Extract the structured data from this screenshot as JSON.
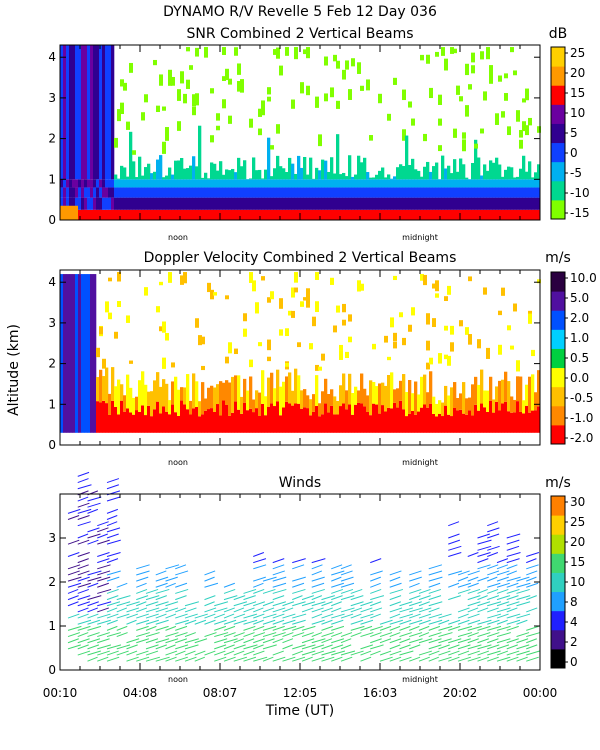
{
  "header": {
    "line1": "DYNAMO R/V Revelle    5 Feb 12 Day 036"
  },
  "colors": {
    "snr": [
      "#80ff00",
      "#00d890",
      "#00b0f0",
      "#1040ff",
      "#300090",
      "#6a00a0",
      "#ff0000",
      "#ff9900",
      "#ffd000"
    ],
    "velocity": [
      "#ff0000",
      "#ff8800",
      "#ffc000",
      "#ffff00",
      "#00d040",
      "#00d0ff",
      "#0050ff",
      "#5010a0",
      "#2a0040"
    ],
    "winds": [
      "#000000",
      "#40108a",
      "#2020ff",
      "#20a0ff",
      "#30d0c0",
      "#40d870",
      "#b0e000",
      "#ffd000",
      "#ff8000",
      "#ff0000"
    ]
  },
  "chart_data": [
    {
      "type": "heatmap",
      "name": "snr",
      "title": "SNR Combined 2 Vertical Beams",
      "ylabel": "",
      "ylim": [
        0,
        4.3
      ],
      "yticks": [
        "0",
        "1",
        "2",
        "3",
        "4"
      ],
      "day_labels": [
        "noon",
        "midnight"
      ],
      "colorbar": {
        "unit": "dB",
        "labels": [
          "25",
          "20",
          "15",
          "10",
          "5",
          "0",
          "-5",
          "-10",
          "-15"
        ]
      }
    },
    {
      "type": "heatmap",
      "name": "doppler",
      "title": "Doppler Velocity Combined 2 Vertical Beams",
      "ylabel": "Altitude (km)",
      "ylim": [
        0,
        4.3
      ],
      "yticks": [
        "0",
        "1",
        "2",
        "3",
        "4"
      ],
      "day_labels": [
        "noon",
        "midnight"
      ],
      "colorbar": {
        "unit": "m/s",
        "labels": [
          "10.0",
          "5.0",
          "2.0",
          "1.0",
          "0.5",
          "0.0",
          "-0.5",
          "-1.0",
          "-2.0"
        ]
      }
    },
    {
      "type": "scatter",
      "name": "winds",
      "title": "Winds",
      "ylim": [
        0,
        4
      ],
      "yticks": [
        "0",
        "1",
        "2",
        "3"
      ],
      "day_labels": [
        "noon",
        "midnight"
      ],
      "xlabel": "Time (UT)",
      "xtick_labels": [
        "00:10",
        "04:08",
        "08:07",
        "12:05",
        "16:03",
        "20:02",
        "00:00"
      ],
      "colorbar": {
        "unit": "m/s",
        "labels": [
          "30",
          "25",
          "20",
          "15",
          "10",
          "8",
          "4",
          "2",
          "0"
        ]
      }
    }
  ]
}
